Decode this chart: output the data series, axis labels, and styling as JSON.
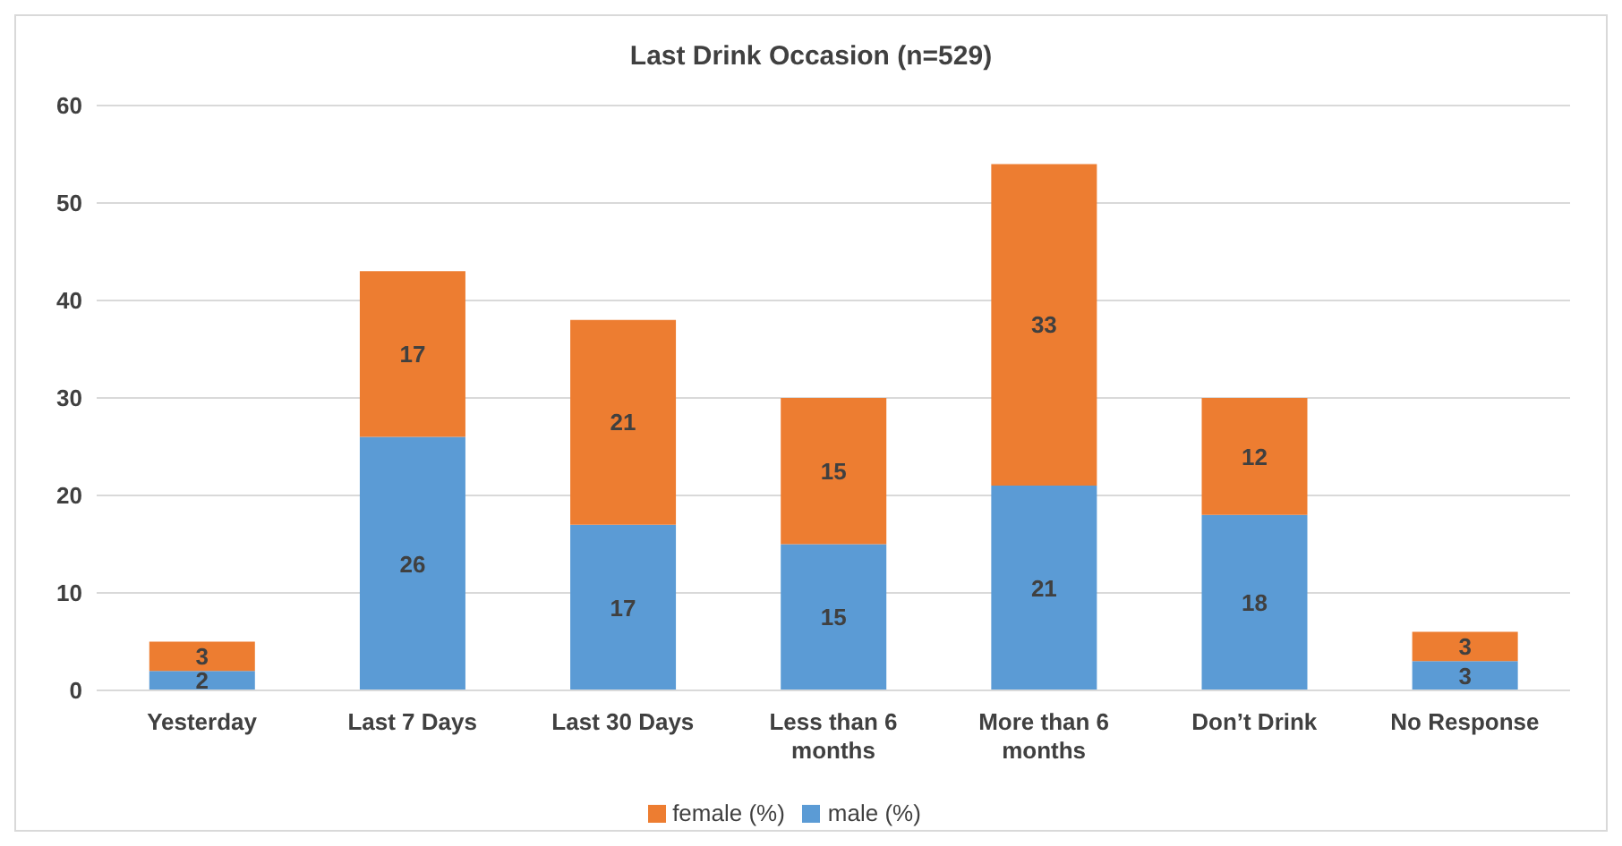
{
  "chart_data": {
    "type": "bar",
    "title": "Last Drink Occasion (n=529)",
    "categories": [
      "Yesterday",
      "Last 7 Days",
      "Last 30 Days",
      "Less than 6 months",
      "More than 6 months",
      "Don’t Drink",
      "No Response"
    ],
    "series": [
      {
        "name": "male (%)",
        "color": "#5b9bd5",
        "values": [
          2,
          26,
          17,
          15,
          21,
          18,
          3
        ]
      },
      {
        "name": "female (%)",
        "color": "#ed7d31",
        "values": [
          3,
          17,
          21,
          15,
          33,
          12,
          3
        ]
      }
    ],
    "stacked": true,
    "ylim": [
      0,
      60
    ],
    "yticks": [
      0,
      10,
      20,
      30,
      40,
      50,
      60
    ],
    "grid": "y",
    "legend": "bottom",
    "data_labels": true
  }
}
